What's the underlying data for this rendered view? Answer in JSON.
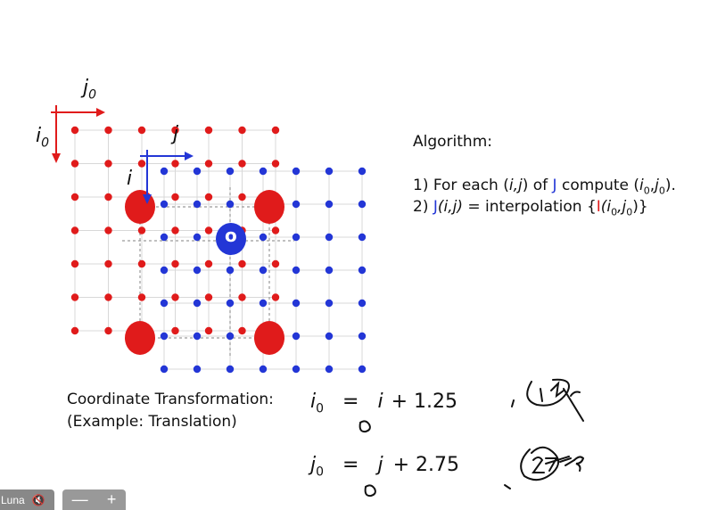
{
  "axes": {
    "red_i": "i",
    "red_i_sub": "0",
    "red_j": "j",
    "red_j_sub": "0",
    "blue_i": "i",
    "blue_j": "j",
    "center_label": "o"
  },
  "algorithm": {
    "title": "Algorithm:",
    "step1_prefix": "1)  For each (",
    "step1_ij": "i,j",
    "step1_of": ") of ",
    "step1_J": "J",
    "step1_compute": " compute (",
    "step1_i0": "i",
    "step1_sub0a": "0",
    "step1_comma": ",",
    "step1_j0": "j",
    "step1_sub0b": "0",
    "step1_end": ").",
    "step2_prefix": "2)  ",
    "step2_J": "J",
    "step2_ij": "(i,j)",
    "step2_mid": " = interpolation {",
    "step2_I": "I",
    "step2_args": "(i",
    "step2_sub0a": "0",
    "step2_comma": ",j",
    "step2_sub0b": "0",
    "step2_end": ")}"
  },
  "coordinate": {
    "line1": "Coordinate Transformation:",
    "line2": "(Example: Translation)"
  },
  "equations": {
    "eq1_lhs": "i",
    "eq1_sub": "0",
    "eq1_eq": "=",
    "eq1_rhs": "i",
    "eq1_plus": "+  1.25",
    "eq2_lhs": "j",
    "eq2_sub": "0",
    "eq2_eq": "=",
    "eq2_rhs": "j",
    "eq2_plus": "+ 2.75"
  },
  "colors": {
    "red": "#e01b1b",
    "blue": "#2336d6",
    "grid": "#d8d8d8"
  },
  "toolbar": {
    "user": "Luna",
    "minus": "—",
    "plus": "+"
  }
}
